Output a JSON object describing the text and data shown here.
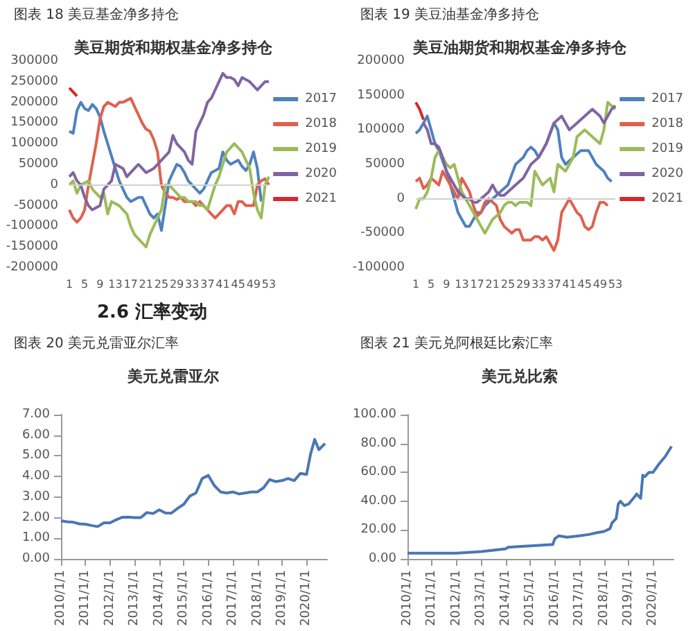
{
  "chart_data": [
    {
      "type": "line",
      "subtitle": "图表 18 美豆基金净多持仓",
      "title": "美豆期货和期权基金净多持仓",
      "categories": [
        "1",
        null,
        null,
        null,
        "5",
        null,
        null,
        null,
        "9",
        null,
        null,
        null,
        "13",
        null,
        null,
        null,
        "17",
        null,
        null,
        null,
        "21",
        null,
        null,
        null,
        "25",
        null,
        null,
        null,
        "29",
        null,
        null,
        null,
        "33",
        null,
        null,
        null,
        "37",
        null,
        null,
        null,
        "41",
        null,
        null,
        null,
        "45",
        null,
        null,
        null,
        "49",
        null,
        null,
        null,
        "53"
      ],
      "series": [
        {
          "name": "2017",
          "color": "#4f81bd",
          "values": [
            130000,
            125000,
            180000,
            200000,
            185000,
            180000,
            195000,
            185000,
            165000,
            130000,
            100000,
            70000,
            40000,
            10000,
            -10000,
            -30000,
            -40000,
            -35000,
            -30000,
            -30000,
            -50000,
            -70000,
            -80000,
            -70000,
            -110000,
            -50000,
            10000,
            30000,
            50000,
            45000,
            30000,
            10000,
            0,
            -10000,
            -20000,
            -10000,
            10000,
            30000,
            35000,
            40000,
            80000,
            60000,
            50000,
            55000,
            60000,
            45000,
            35000,
            50000,
            80000,
            40000,
            -40000,
            null,
            null
          ]
        },
        {
          "name": "2018",
          "color": "#e0604e",
          "values": [
            -60000,
            -80000,
            -90000,
            -80000,
            -60000,
            0,
            50000,
            100000,
            160000,
            190000,
            200000,
            195000,
            190000,
            200000,
            200000,
            205000,
            210000,
            190000,
            170000,
            150000,
            135000,
            130000,
            110000,
            80000,
            0,
            -20000,
            -30000,
            -30000,
            -35000,
            -30000,
            -40000,
            -40000,
            -40000,
            -50000,
            -40000,
            -50000,
            -60000,
            -70000,
            -80000,
            -70000,
            -60000,
            -50000,
            -50000,
            -70000,
            -40000,
            -40000,
            -50000,
            -50000,
            -50000,
            0,
            10000,
            15000,
            0
          ]
        },
        {
          "name": "2019",
          "color": "#9bbb59",
          "values": [
            0,
            10000,
            -20000,
            0,
            5000,
            10000,
            -10000,
            -20000,
            -30000,
            -20000,
            -70000,
            -40000,
            -45000,
            -50000,
            -60000,
            -70000,
            -100000,
            -120000,
            -130000,
            -140000,
            -150000,
            -120000,
            -100000,
            -80000,
            -60000,
            0,
            0,
            -10000,
            -20000,
            -30000,
            -30000,
            -40000,
            -40000,
            -40000,
            -50000,
            -50000,
            -60000,
            -30000,
            0,
            20000,
            50000,
            80000,
            90000,
            100000,
            90000,
            80000,
            60000,
            40000,
            -20000,
            -60000,
            -80000,
            0,
            20000
          ]
        },
        {
          "name": "2020",
          "color": "#8064a2",
          "values": [
            20000,
            30000,
            10000,
            0,
            -30000,
            -50000,
            -60000,
            -55000,
            -50000,
            -10000,
            0,
            10000,
            50000,
            45000,
            40000,
            20000,
            30000,
            40000,
            50000,
            40000,
            30000,
            35000,
            40000,
            50000,
            60000,
            70000,
            80000,
            120000,
            100000,
            90000,
            80000,
            60000,
            50000,
            130000,
            150000,
            170000,
            200000,
            210000,
            230000,
            250000,
            270000,
            260000,
            260000,
            255000,
            240000,
            260000,
            255000,
            250000,
            240000,
            230000,
            240000,
            250000,
            250000
          ]
        },
        {
          "name": "2021",
          "color": "#d9262a",
          "values": [
            235000,
            225000,
            215000,
            null,
            null,
            null,
            null,
            null,
            null,
            null,
            null,
            null,
            null,
            null,
            null,
            null,
            null,
            null,
            null,
            null,
            null,
            null,
            null,
            null,
            null,
            null,
            null,
            null,
            null,
            null,
            null,
            null,
            null,
            null,
            null,
            null,
            null,
            null,
            null,
            null,
            null,
            null,
            null,
            null,
            null,
            null,
            null,
            null,
            null,
            null,
            null,
            null,
            null
          ]
        }
      ],
      "ref_lines": [
        {
          "axis": "y",
          "value": 0,
          "color": "#d0d0d0"
        }
      ],
      "ylim": [
        -200000,
        300000
      ],
      "yticks": [
        -200000,
        -150000,
        -100000,
        -50000,
        0,
        50000,
        100000,
        150000,
        200000,
        250000,
        300000
      ],
      "legend": "right",
      "grid": false,
      "marker": "none"
    },
    {
      "type": "line",
      "subtitle": "图表 19 美豆油基金净多持仓",
      "title": "美豆油期货和期权基金净多持仓",
      "categories": [
        "1",
        null,
        null,
        null,
        "5",
        null,
        null,
        null,
        "9",
        null,
        null,
        null,
        "13",
        null,
        null,
        null,
        "17",
        null,
        null,
        null,
        "21",
        null,
        null,
        null,
        "25",
        null,
        null,
        null,
        "29",
        null,
        null,
        null,
        "33",
        null,
        null,
        null,
        "37",
        null,
        null,
        null,
        "41",
        null,
        null,
        null,
        "45",
        null,
        null,
        null,
        "49",
        null,
        null,
        null,
        "53"
      ],
      "series": [
        {
          "name": "2017",
          "color": "#4f81bd",
          "values": [
            95000,
            100000,
            110000,
            120000,
            100000,
            80000,
            70000,
            55000,
            40000,
            20000,
            0,
            -20000,
            -30000,
            -40000,
            -40000,
            -30000,
            -20000,
            -20000,
            -10000,
            -5000,
            0,
            5000,
            10000,
            15000,
            20000,
            35000,
            50000,
            55000,
            60000,
            70000,
            75000,
            70000,
            60000,
            70000,
            80000,
            95000,
            110000,
            100000,
            60000,
            50000,
            55000,
            60000,
            65000,
            70000,
            70000,
            70000,
            60000,
            50000,
            45000,
            40000,
            30000,
            25000,
            null
          ]
        },
        {
          "name": "2018",
          "color": "#e0604e",
          "values": [
            25000,
            30000,
            15000,
            20000,
            30000,
            25000,
            20000,
            40000,
            30000,
            20000,
            10000,
            0,
            30000,
            20000,
            10000,
            -10000,
            -25000,
            -20000,
            -5000,
            0,
            -5000,
            -10000,
            -30000,
            -40000,
            -45000,
            -50000,
            -45000,
            -45000,
            -60000,
            -60000,
            -60000,
            -55000,
            -55000,
            -60000,
            -55000,
            -65000,
            -75000,
            -60000,
            -20000,
            -10000,
            0,
            -10000,
            -20000,
            -25000,
            -40000,
            -45000,
            -40000,
            -20000,
            -5000,
            -5000,
            -10000,
            null,
            null
          ]
        },
        {
          "name": "2019",
          "color": "#9bbb59",
          "values": [
            -15000,
            0,
            0,
            10000,
            30000,
            60000,
            70000,
            60000,
            50000,
            45000,
            50000,
            30000,
            10000,
            0,
            -10000,
            -20000,
            -30000,
            -40000,
            -50000,
            -40000,
            -30000,
            -25000,
            -20000,
            -10000,
            -5000,
            -5000,
            -10000,
            -5000,
            -5000,
            -5000,
            -10000,
            40000,
            30000,
            20000,
            25000,
            30000,
            10000,
            50000,
            45000,
            40000,
            50000,
            60000,
            90000,
            95000,
            100000,
            95000,
            90000,
            85000,
            80000,
            100000,
            140000,
            135000,
            130000
          ]
        },
        {
          "name": "2020",
          "color": "#8064a2",
          "values": [
            null,
            null,
            110000,
            100000,
            80000,
            80000,
            75000,
            60000,
            40000,
            30000,
            20000,
            10000,
            5000,
            0,
            0,
            -5000,
            -5000,
            0,
            5000,
            10000,
            20000,
            10000,
            5000,
            5000,
            10000,
            15000,
            20000,
            25000,
            30000,
            40000,
            50000,
            55000,
            60000,
            70000,
            80000,
            95000,
            110000,
            115000,
            120000,
            110000,
            100000,
            105000,
            110000,
            115000,
            120000,
            125000,
            130000,
            125000,
            120000,
            110000,
            120000,
            130000,
            135000
          ]
        },
        {
          "name": "2021",
          "color": "#d9262a",
          "values": [
            140000,
            130000,
            115000,
            null,
            null,
            null,
            null,
            null,
            null,
            null,
            null,
            null,
            null,
            null,
            null,
            null,
            null,
            null,
            null,
            null,
            null,
            null,
            null,
            null,
            null,
            null,
            null,
            null,
            null,
            null,
            null,
            null,
            null,
            null,
            null,
            null,
            null,
            null,
            null,
            null,
            null,
            null,
            null,
            null,
            null,
            null,
            null,
            null,
            null,
            null,
            null,
            null,
            null
          ]
        }
      ],
      "ref_lines": [
        {
          "axis": "y",
          "value": 0,
          "color": "#d0d0d0"
        }
      ],
      "ylim": [
        -100000,
        200000
      ],
      "yticks": [
        -100000,
        -50000,
        0,
        50000,
        100000,
        150000,
        200000
      ],
      "legend": "right",
      "grid": false,
      "marker": "none"
    },
    {
      "type": "line",
      "annotations": [
        "2.6 汇率变动"
      ],
      "subtitle": "图表 20 美元兑雷亚尔汇率",
      "title": "美元兑雷亚尔",
      "x": [
        "2010-01",
        "2010-04",
        "2010-07",
        "2010-10",
        "2011-01",
        "2011-04",
        "2011-07",
        "2011-10",
        "2012-01",
        "2012-04",
        "2012-07",
        "2012-10",
        "2013-01",
        "2013-04",
        "2013-07",
        "2013-10",
        "2014-01",
        "2014-04",
        "2014-07",
        "2014-10",
        "2015-01",
        "2015-04",
        "2015-07",
        "2015-10",
        "2016-01",
        "2016-04",
        "2016-07",
        "2016-10",
        "2017-01",
        "2017-04",
        "2017-07",
        "2017-10",
        "2018-01",
        "2018-04",
        "2018-07",
        "2018-10",
        "2019-01",
        "2019-04",
        "2019-07",
        "2019-10",
        "2020-01",
        "2020-03",
        "2020-05",
        "2020-07",
        "2020-09",
        "2020-10"
      ],
      "series": [
        {
          "color": "#4a76b4",
          "values": [
            1.85,
            1.8,
            1.78,
            1.7,
            1.68,
            1.62,
            1.57,
            1.75,
            1.75,
            1.9,
            2.02,
            2.03,
            2.0,
            2.0,
            2.25,
            2.2,
            2.38,
            2.23,
            2.22,
            2.45,
            2.65,
            3.05,
            3.2,
            3.9,
            4.05,
            3.55,
            3.25,
            3.2,
            3.25,
            3.15,
            3.2,
            3.25,
            3.25,
            3.45,
            3.85,
            3.75,
            3.8,
            3.9,
            3.8,
            4.15,
            4.1,
            5.1,
            5.8,
            5.3,
            5.5,
            5.6
          ]
        }
      ],
      "xlim": [
        "2010-01-01",
        "2020-11-01"
      ],
      "xticks": [
        {
          "value": "2010-01-01",
          "label": "2010/1/1"
        },
        {
          "value": "2011-01-01",
          "label": "2011/1/1"
        },
        {
          "value": "2012-01-01",
          "label": "2012/1/1"
        },
        {
          "value": "2013-01-01",
          "label": "2013/1/1"
        },
        {
          "value": "2014-01-01",
          "label": "2014/1/1"
        },
        {
          "value": "2015-01-01",
          "label": "2015/1/1"
        },
        {
          "value": "2016-01-01",
          "label": "2016/1/1"
        },
        {
          "value": "2017-01-01",
          "label": "2017/1/1"
        },
        {
          "value": "2018-01-01",
          "label": "2018/1/1"
        },
        {
          "value": "2019-01-01",
          "label": "2019/1/1"
        },
        {
          "value": "2020-01-01",
          "label": "2020/1/1"
        }
      ],
      "ylim": [
        0,
        7
      ],
      "yticks": [
        {
          "value": 0,
          "label": "0.00"
        },
        {
          "value": 1,
          "label": "1.00"
        },
        {
          "value": 2,
          "label": "2.00"
        },
        {
          "value": 3,
          "label": "3.00"
        },
        {
          "value": 4,
          "label": "4.00"
        },
        {
          "value": 5,
          "label": "5.00"
        },
        {
          "value": 6,
          "label": "6.00"
        },
        {
          "value": 7,
          "label": "7.00"
        }
      ],
      "grid": false,
      "marker": "none"
    },
    {
      "type": "line",
      "subtitle": "图表 21 美元兑阿根廷比索汇率",
      "title": "美元兑比索",
      "x": [
        "2010-01",
        "2011-01",
        "2012-01",
        "2013-01",
        "2013-07",
        "2014-01",
        "2014-02",
        "2015-01",
        "2015-12",
        "2016-01",
        "2016-03",
        "2016-07",
        "2017-01",
        "2017-06",
        "2017-09",
        "2018-01",
        "2018-04",
        "2018-05",
        "2018-07",
        "2018-08",
        "2018-09",
        "2018-11",
        "2019-01",
        "2019-04",
        "2019-05",
        "2019-07",
        "2019-08",
        "2019-09",
        "2019-11",
        "2020-01",
        "2020-04",
        "2020-07",
        "2020-10"
      ],
      "series": [
        {
          "color": "#4a76b4",
          "values": [
            4,
            4,
            4,
            5,
            6,
            7,
            8,
            9,
            10,
            14,
            16,
            15,
            16,
            17,
            18,
            19,
            21,
            25,
            28,
            38,
            40,
            37,
            38,
            43,
            45,
            42,
            58,
            57,
            60,
            60,
            66,
            71,
            78
          ]
        }
      ],
      "xlim": [
        "2010-01-01",
        "2020-11-01"
      ],
      "xticks": [
        {
          "value": "2010-01-01",
          "label": "2010/1/1"
        },
        {
          "value": "2011-01-01",
          "label": "2011/1/1"
        },
        {
          "value": "2012-01-01",
          "label": "2012/1/1"
        },
        {
          "value": "2013-01-01",
          "label": "2013/1/1"
        },
        {
          "value": "2014-01-01",
          "label": "2014/1/1"
        },
        {
          "value": "2015-01-01",
          "label": "2015/1/1"
        },
        {
          "value": "2016-01-01",
          "label": "2016/1/1"
        },
        {
          "value": "2017-01-01",
          "label": "2017/1/1"
        },
        {
          "value": "2018-01-01",
          "label": "2018/1/1"
        },
        {
          "value": "2019-01-01",
          "label": "2019/1/1"
        },
        {
          "value": "2020-01-01",
          "label": "2020/1/1"
        }
      ],
      "ylim": [
        0,
        100
      ],
      "yticks": [
        {
          "value": 0,
          "label": "0.00"
        },
        {
          "value": 20,
          "label": "20.00"
        },
        {
          "value": 40,
          "label": "40.00"
        },
        {
          "value": 60,
          "label": "60.00"
        },
        {
          "value": 80,
          "label": "80.00"
        },
        {
          "value": 100,
          "label": "100.00"
        }
      ],
      "grid": false,
      "marker": "none"
    }
  ]
}
